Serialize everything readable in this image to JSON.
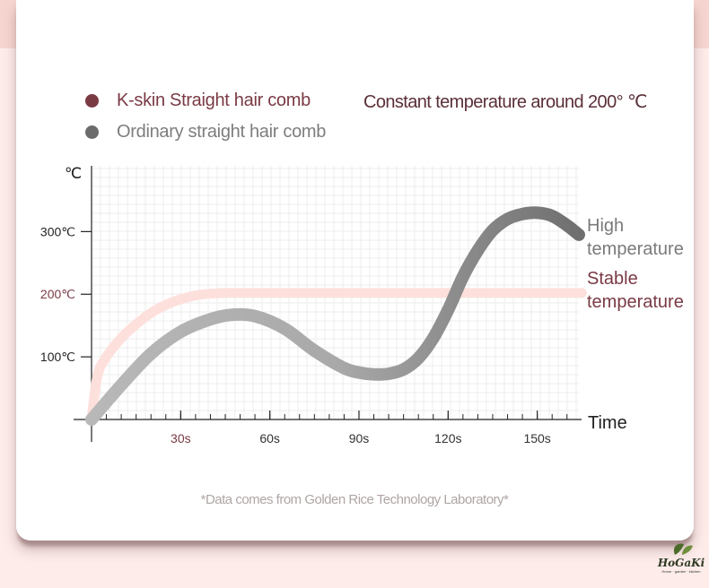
{
  "legend": {
    "kskin_label": "K-skin Straight hair comb",
    "ordinary_label": "Ordinary straight hair comb",
    "constant_note": "Constant temperature around 200° ℃"
  },
  "footnote": "*Data comes from Golden Rice Technology Laboratory*",
  "logo": {
    "name": "HoGaKi",
    "tagline": "Home · garden · kitchen"
  },
  "colors": {
    "kskin_text": "#7a3a44",
    "kskin_line": "#fde0dc",
    "ordinary_line": "#b8b8b8",
    "ordinary_line_dark": "#6f6f6f",
    "grid": "#ececec"
  },
  "chart_data": {
    "type": "line",
    "xlabel": "Time",
    "ylabel": "℃",
    "xlim": [
      0,
      164
    ],
    "ylim": [
      0,
      405
    ],
    "grid": true,
    "x_ticks": [
      {
        "value": 30,
        "label": "30s",
        "highlight": true
      },
      {
        "value": 60,
        "label": "60s",
        "highlight": false
      },
      {
        "value": 90,
        "label": "90s",
        "highlight": false
      },
      {
        "value": 120,
        "label": "120s",
        "highlight": false
      },
      {
        "value": 150,
        "label": "150s",
        "highlight": false
      }
    ],
    "y_ticks": [
      {
        "value": 100,
        "label": "100℃",
        "highlight": false
      },
      {
        "value": 200,
        "label": "200℃",
        "highlight": true
      },
      {
        "value": 300,
        "label": "300℃",
        "highlight": false
      }
    ],
    "series": [
      {
        "name": "K-skin Straight hair comb",
        "end_label": [
          "Stable",
          "temperature"
        ],
        "x": [
          0,
          2,
          5,
          10,
          15,
          20,
          25,
          30,
          35,
          40,
          45,
          50,
          60,
          80,
          100,
          120,
          140,
          165
        ],
        "y": [
          0,
          70,
          100,
          130,
          152,
          170,
          183,
          192,
          198,
          201,
          202,
          202,
          202,
          202,
          202,
          202,
          202,
          202
        ]
      },
      {
        "name": "Ordinary straight hair comb",
        "end_label": [
          "High",
          "temperature"
        ],
        "x": [
          0,
          10,
          20,
          30,
          40,
          47,
          55,
          65,
          75,
          85,
          90,
          95,
          100,
          105,
          110,
          115,
          120,
          125,
          130,
          135,
          140,
          145,
          150,
          155,
          160,
          164
        ],
        "y": [
          0,
          55,
          105,
          140,
          160,
          167,
          165,
          145,
          110,
          82,
          75,
          72,
          73,
          80,
          98,
          130,
          175,
          228,
          270,
          302,
          320,
          328,
          330,
          325,
          310,
          295
        ]
      }
    ]
  }
}
